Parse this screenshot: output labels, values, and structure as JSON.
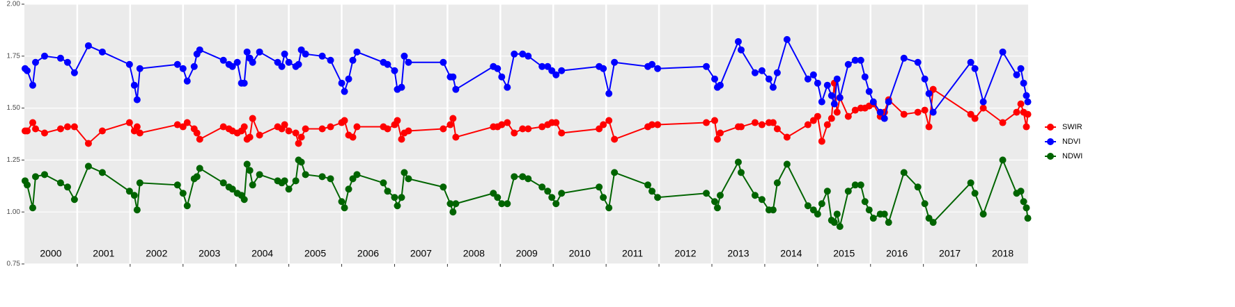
{
  "chart_data": {
    "type": "line",
    "x": [
      2000.013,
      2000.053,
      2000.158,
      2000.211,
      2000.382,
      2000.684,
      2000.816,
      2000.947,
      2001.211,
      2001.474,
      2001.987,
      2002.079,
      2002.132,
      2002.184,
      2002.895,
      2003.0,
      2003.079,
      2003.211,
      2003.263,
      2003.316,
      2003.763,
      2003.868,
      2003.934,
      2004.026,
      2004.105,
      2004.158,
      2004.211,
      2004.263,
      2004.316,
      2004.447,
      2004.789,
      2004.868,
      2004.921,
      2005.0,
      2005.132,
      2005.184,
      2005.237,
      2005.316,
      2005.632,
      2005.789,
      2006.0,
      2006.053,
      2006.132,
      2006.211,
      2006.289,
      2006.789,
      2006.868,
      2007.0,
      2007.053,
      2007.132,
      2007.184,
      2007.263,
      2007.921,
      2008.053,
      2008.105,
      2008.158,
      2008.868,
      2008.947,
      2009.026,
      2009.132,
      2009.263,
      2009.421,
      2009.526,
      2009.789,
      2009.895,
      2009.974,
      2010.053,
      2010.158,
      2010.868,
      2010.947,
      2011.053,
      2011.158,
      2011.789,
      2011.868,
      2011.974,
      2012.895,
      2013.053,
      2013.105,
      2013.158,
      2013.5,
      2013.553,
      2013.816,
      2013.947,
      2014.079,
      2014.158,
      2014.237,
      2014.421,
      2014.816,
      2014.921,
      2015.0,
      2015.079,
      2015.184,
      2015.263,
      2015.316,
      2015.368,
      2015.421,
      2015.579,
      2015.711,
      2015.816,
      2015.895,
      2015.974,
      2016.053,
      2016.184,
      2016.263,
      2016.342,
      2016.632,
      2016.895,
      2017.026,
      2017.105,
      2017.184,
      2017.895,
      2017.974,
      2018.132,
      2018.5,
      2018.763,
      2018.842,
      2018.895,
      2018.947,
      2018.974
    ],
    "series": [
      {
        "name": "SWIR",
        "color": "#ff0000",
        "values": [
          1.39,
          1.39,
          1.43,
          1.4,
          1.38,
          1.4,
          1.41,
          1.41,
          1.33,
          1.39,
          1.43,
          1.39,
          1.41,
          1.38,
          1.42,
          1.41,
          1.43,
          1.4,
          1.38,
          1.35,
          1.41,
          1.4,
          1.39,
          1.38,
          1.39,
          1.41,
          1.35,
          1.36,
          1.45,
          1.37,
          1.41,
          1.4,
          1.42,
          1.39,
          1.38,
          1.33,
          1.36,
          1.4,
          1.4,
          1.41,
          1.43,
          1.44,
          1.37,
          1.36,
          1.41,
          1.41,
          1.4,
          1.42,
          1.44,
          1.35,
          1.38,
          1.39,
          1.4,
          1.42,
          1.45,
          1.36,
          1.41,
          1.41,
          1.42,
          1.43,
          1.38,
          1.4,
          1.4,
          1.41,
          1.42,
          1.43,
          1.43,
          1.38,
          1.4,
          1.42,
          1.44,
          1.35,
          1.41,
          1.42,
          1.42,
          1.43,
          1.44,
          1.35,
          1.38,
          1.41,
          1.41,
          1.43,
          1.42,
          1.43,
          1.43,
          1.4,
          1.36,
          1.42,
          1.44,
          1.46,
          1.34,
          1.42,
          1.45,
          1.62,
          1.48,
          1.55,
          1.46,
          1.49,
          1.5,
          1.5,
          1.51,
          1.52,
          1.46,
          1.48,
          1.54,
          1.47,
          1.48,
          1.49,
          1.41,
          1.59,
          1.47,
          1.45,
          1.5,
          1.43,
          1.48,
          1.52,
          1.48,
          1.41,
          1.47
        ]
      },
      {
        "name": "NDVI",
        "color": "#0000ff",
        "values": [
          1.69,
          1.68,
          1.61,
          1.72,
          1.75,
          1.74,
          1.72,
          1.67,
          1.8,
          1.77,
          1.71,
          1.61,
          1.54,
          1.69,
          1.71,
          1.69,
          1.63,
          1.7,
          1.76,
          1.78,
          1.73,
          1.71,
          1.7,
          1.72,
          1.62,
          1.62,
          1.77,
          1.74,
          1.72,
          1.77,
          1.72,
          1.7,
          1.76,
          1.72,
          1.7,
          1.71,
          1.78,
          1.76,
          1.75,
          1.73,
          1.62,
          1.58,
          1.64,
          1.73,
          1.77,
          1.72,
          1.71,
          1.68,
          1.59,
          1.6,
          1.75,
          1.72,
          1.72,
          1.65,
          1.65,
          1.59,
          1.7,
          1.69,
          1.65,
          1.6,
          1.76,
          1.76,
          1.75,
          1.7,
          1.7,
          1.68,
          1.66,
          1.68,
          1.7,
          1.69,
          1.57,
          1.72,
          1.7,
          1.71,
          1.69,
          1.7,
          1.64,
          1.6,
          1.61,
          1.82,
          1.78,
          1.67,
          1.68,
          1.64,
          1.6,
          1.67,
          1.83,
          1.64,
          1.66,
          1.62,
          1.53,
          1.61,
          1.56,
          1.52,
          1.64,
          1.55,
          1.71,
          1.73,
          1.73,
          1.65,
          1.58,
          1.53,
          1.48,
          1.45,
          1.53,
          1.74,
          1.72,
          1.64,
          1.57,
          1.48,
          1.72,
          1.69,
          1.53,
          1.77,
          1.66,
          1.69,
          1.62,
          1.56,
          1.53
        ]
      },
      {
        "name": "NDWI",
        "color": "#006400",
        "values": [
          1.15,
          1.13,
          1.02,
          1.17,
          1.18,
          1.14,
          1.12,
          1.06,
          1.22,
          1.19,
          1.1,
          1.08,
          1.01,
          1.14,
          1.13,
          1.09,
          1.03,
          1.16,
          1.17,
          1.21,
          1.14,
          1.12,
          1.11,
          1.09,
          1.08,
          1.06,
          1.23,
          1.2,
          1.13,
          1.18,
          1.15,
          1.14,
          1.15,
          1.11,
          1.15,
          1.25,
          1.24,
          1.18,
          1.17,
          1.16,
          1.05,
          1.02,
          1.11,
          1.16,
          1.18,
          1.14,
          1.1,
          1.07,
          1.03,
          1.07,
          1.19,
          1.16,
          1.12,
          1.04,
          1.0,
          1.04,
          1.09,
          1.07,
          1.04,
          1.04,
          1.17,
          1.17,
          1.16,
          1.12,
          1.1,
          1.07,
          1.04,
          1.09,
          1.12,
          1.07,
          1.02,
          1.19,
          1.13,
          1.1,
          1.07,
          1.09,
          1.05,
          1.02,
          1.08,
          1.24,
          1.19,
          1.08,
          1.06,
          1.01,
          1.01,
          1.14,
          1.23,
          1.03,
          1.01,
          0.99,
          1.04,
          1.1,
          0.96,
          0.95,
          0.99,
          0.93,
          1.1,
          1.13,
          1.13,
          1.05,
          1.01,
          0.97,
          0.99,
          0.99,
          0.95,
          1.19,
          1.12,
          1.04,
          0.97,
          0.95,
          1.14,
          1.09,
          0.99,
          1.25,
          1.09,
          1.1,
          1.05,
          1.02,
          0.97
        ]
      }
    ],
    "xlim": [
      2000,
      2018.98
    ],
    "xticks": [
      {
        "value": 2000.5,
        "label": "2000"
      },
      {
        "value": 2001.5,
        "label": "2001"
      },
      {
        "value": 2002.5,
        "label": "2002"
      },
      {
        "value": 2003.5,
        "label": "2003"
      },
      {
        "value": 2004.5,
        "label": "2004"
      },
      {
        "value": 2005.5,
        "label": "2005"
      },
      {
        "value": 2006.5,
        "label": "2006"
      },
      {
        "value": 2007.5,
        "label": "2007"
      },
      {
        "value": 2008.5,
        "label": "2008"
      },
      {
        "value": 2009.5,
        "label": "2009"
      },
      {
        "value": 2010.5,
        "label": "2010"
      },
      {
        "value": 2011.5,
        "label": "2011"
      },
      {
        "value": 2012.5,
        "label": "2012"
      },
      {
        "value": 2013.5,
        "label": "2013"
      },
      {
        "value": 2014.5,
        "label": "2014"
      },
      {
        "value": 2015.5,
        "label": "2015"
      },
      {
        "value": 2016.5,
        "label": "2016"
      },
      {
        "value": 2017.5,
        "label": "2017"
      },
      {
        "value": 2018.5,
        "label": "2018"
      }
    ],
    "x_breaks": [
      2001,
      2002,
      2003,
      2004,
      2005,
      2006,
      2007,
      2008,
      2009,
      2010,
      2011,
      2012,
      2013,
      2014,
      2015,
      2016,
      2017,
      2018
    ],
    "ylim": [
      0.75,
      2.0
    ],
    "yticks": [
      {
        "value": 0.75,
        "label": "0.75"
      },
      {
        "value": 1.0,
        "label": "1.00"
      },
      {
        "value": 1.25,
        "label": "1.25"
      },
      {
        "value": 1.5,
        "label": "1.50"
      },
      {
        "value": 1.75,
        "label": "1.75"
      },
      {
        "value": 2.0,
        "label": "2.00"
      }
    ],
    "grid": true,
    "legend": "right"
  }
}
